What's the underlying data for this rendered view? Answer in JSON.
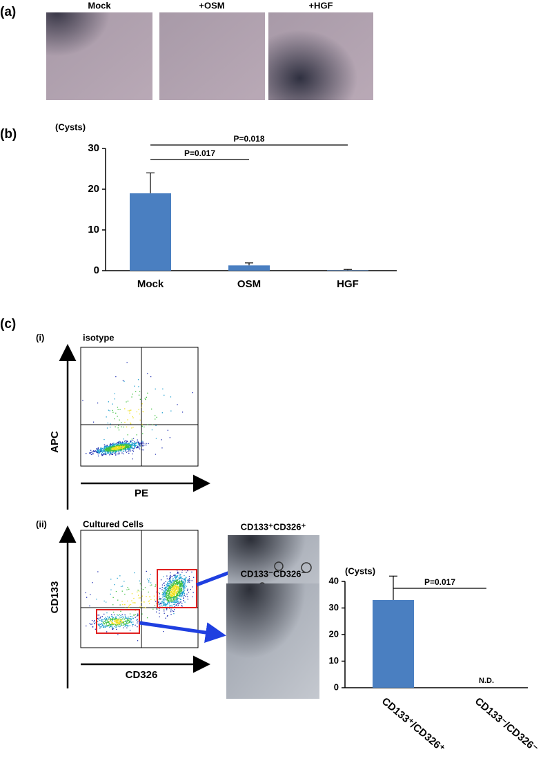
{
  "figure": {
    "panel_a": "(a)",
    "panel_b": "(b)",
    "panel_c": "(c)",
    "image_labels": [
      "Mock",
      "+OSM",
      "+HGF"
    ],
    "sub_i": "(i)",
    "sub_i_title": "isotype",
    "sub_i_ylabel": "APC",
    "sub_i_xlabel": "PE",
    "sub_ii": "(ii)",
    "sub_ii_title": "Cultured Cells",
    "sub_ii_ylabel": "CD133",
    "sub_ii_xlabel": "CD326",
    "sorted_labels": [
      "CD133⁺CD326⁺",
      "CD133⁻CD326⁻"
    ]
  },
  "chart_data": [
    {
      "type": "bar",
      "ylabel": "(Cysts)",
      "categories": [
        "Mock",
        "OSM",
        "HGF"
      ],
      "values": [
        19,
        1.3,
        0.1
      ],
      "errors": [
        5,
        0.6,
        0.2
      ],
      "color": "#4a7fc1",
      "ylim": [
        0,
        30
      ],
      "yticks": [
        0,
        10,
        20,
        30
      ],
      "comparisons": [
        {
          "label": "P=0.017",
          "between": [
            "Mock",
            "OSM"
          ]
        },
        {
          "label": "P=0.018",
          "between": [
            "Mock",
            "HGF"
          ]
        }
      ]
    },
    {
      "type": "bar",
      "ylabel": "(Cysts)",
      "categories": [
        "CD133⁺/CD326⁺",
        "CD133⁻/CD326⁻"
      ],
      "values": [
        33,
        null
      ],
      "errors": [
        9,
        null
      ],
      "color": "#4a7fc1",
      "ylim": [
        0,
        40
      ],
      "yticks": [
        0,
        10,
        20,
        30,
        40
      ],
      "comparisons": [
        {
          "label": "P=0.017",
          "between": [
            "CD133⁺/CD326⁺",
            "CD133⁻/CD326⁻"
          ]
        }
      ],
      "annotations": [
        "N.D."
      ]
    }
  ]
}
